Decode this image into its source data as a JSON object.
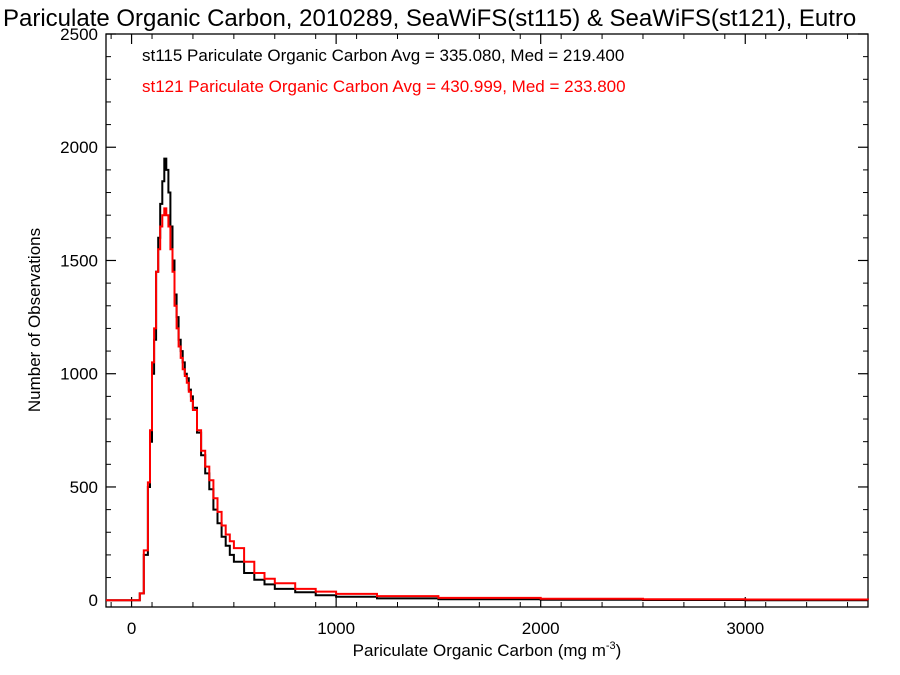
{
  "chart_data": {
    "type": "line",
    "title": "Pariculate Organic Carbon, 2010289, SeaWiFS(st115) & SeaWiFS(st121), Eutro",
    "xlabel": "Pariculate Organic Carbon (mg m",
    "xlabel_superscript": "-3",
    "xlabel_suffix": ")",
    "ylabel": "Number of Observations",
    "xlim": [
      -125,
      3600
    ],
    "ylim": [
      -30,
      2500
    ],
    "x_ticks": [
      0,
      1000,
      2000,
      3000
    ],
    "x_tick_labels": [
      "0",
      "1000",
      "2000",
      "3000"
    ],
    "y_ticks": [
      0,
      500,
      1000,
      1500,
      2000,
      2500
    ],
    "y_tick_labels": [
      "0",
      "500",
      "1000",
      "1500",
      "2000",
      "2500"
    ],
    "grid": false,
    "legend_position": "top-left",
    "series": [
      {
        "name": "st115 Pariculate Organic Carbon Avg = 335.080, Med = 219.400",
        "color": "#000000",
        "points": [
          [
            -125,
            0
          ],
          [
            0,
            0
          ],
          [
            20,
            0
          ],
          [
            40,
            30
          ],
          [
            60,
            200
          ],
          [
            80,
            500
          ],
          [
            90,
            700
          ],
          [
            100,
            1000
          ],
          [
            110,
            1150
          ],
          [
            120,
            1450
          ],
          [
            130,
            1600
          ],
          [
            140,
            1750
          ],
          [
            150,
            1850
          ],
          [
            160,
            1950
          ],
          [
            170,
            1900
          ],
          [
            180,
            1800
          ],
          [
            190,
            1650
          ],
          [
            200,
            1500
          ],
          [
            210,
            1350
          ],
          [
            220,
            1250
          ],
          [
            230,
            1150
          ],
          [
            240,
            1100
          ],
          [
            250,
            1050
          ],
          [
            260,
            1000
          ],
          [
            270,
            980
          ],
          [
            280,
            930
          ],
          [
            290,
            900
          ],
          [
            300,
            850
          ],
          [
            320,
            740
          ],
          [
            340,
            640
          ],
          [
            360,
            560
          ],
          [
            380,
            490
          ],
          [
            400,
            400
          ],
          [
            420,
            340
          ],
          [
            440,
            280
          ],
          [
            460,
            240
          ],
          [
            480,
            200
          ],
          [
            500,
            170
          ],
          [
            550,
            120
          ],
          [
            600,
            90
          ],
          [
            650,
            70
          ],
          [
            700,
            50
          ],
          [
            800,
            35
          ],
          [
            900,
            22
          ],
          [
            1000,
            15
          ],
          [
            1200,
            8
          ],
          [
            1500,
            4
          ],
          [
            2000,
            2
          ],
          [
            2500,
            1
          ],
          [
            3000,
            0
          ],
          [
            3600,
            0
          ]
        ]
      },
      {
        "name": "st121 Pariculate Organic Carbon Avg = 430.999, Med = 233.800",
        "color": "#ff0000",
        "points": [
          [
            -125,
            0
          ],
          [
            0,
            0
          ],
          [
            20,
            0
          ],
          [
            40,
            30
          ],
          [
            60,
            220
          ],
          [
            80,
            520
          ],
          [
            90,
            750
          ],
          [
            100,
            1050
          ],
          [
            110,
            1200
          ],
          [
            120,
            1450
          ],
          [
            130,
            1550
          ],
          [
            140,
            1650
          ],
          [
            150,
            1700
          ],
          [
            160,
            1730
          ],
          [
            170,
            1700
          ],
          [
            180,
            1650
          ],
          [
            190,
            1550
          ],
          [
            200,
            1450
          ],
          [
            210,
            1300
          ],
          [
            220,
            1200
          ],
          [
            230,
            1120
          ],
          [
            240,
            1070
          ],
          [
            250,
            1020
          ],
          [
            260,
            990
          ],
          [
            270,
            960
          ],
          [
            280,
            920
          ],
          [
            290,
            880
          ],
          [
            300,
            840
          ],
          [
            320,
            750
          ],
          [
            340,
            660
          ],
          [
            360,
            590
          ],
          [
            380,
            530
          ],
          [
            400,
            450
          ],
          [
            420,
            390
          ],
          [
            440,
            330
          ],
          [
            460,
            290
          ],
          [
            480,
            260
          ],
          [
            500,
            230
          ],
          [
            550,
            170
          ],
          [
            600,
            120
          ],
          [
            650,
            95
          ],
          [
            700,
            75
          ],
          [
            800,
            50
          ],
          [
            900,
            38
          ],
          [
            1000,
            28
          ],
          [
            1200,
            18
          ],
          [
            1500,
            10
          ],
          [
            2000,
            6
          ],
          [
            2500,
            4
          ],
          [
            3000,
            3
          ],
          [
            3600,
            2
          ]
        ]
      }
    ]
  }
}
